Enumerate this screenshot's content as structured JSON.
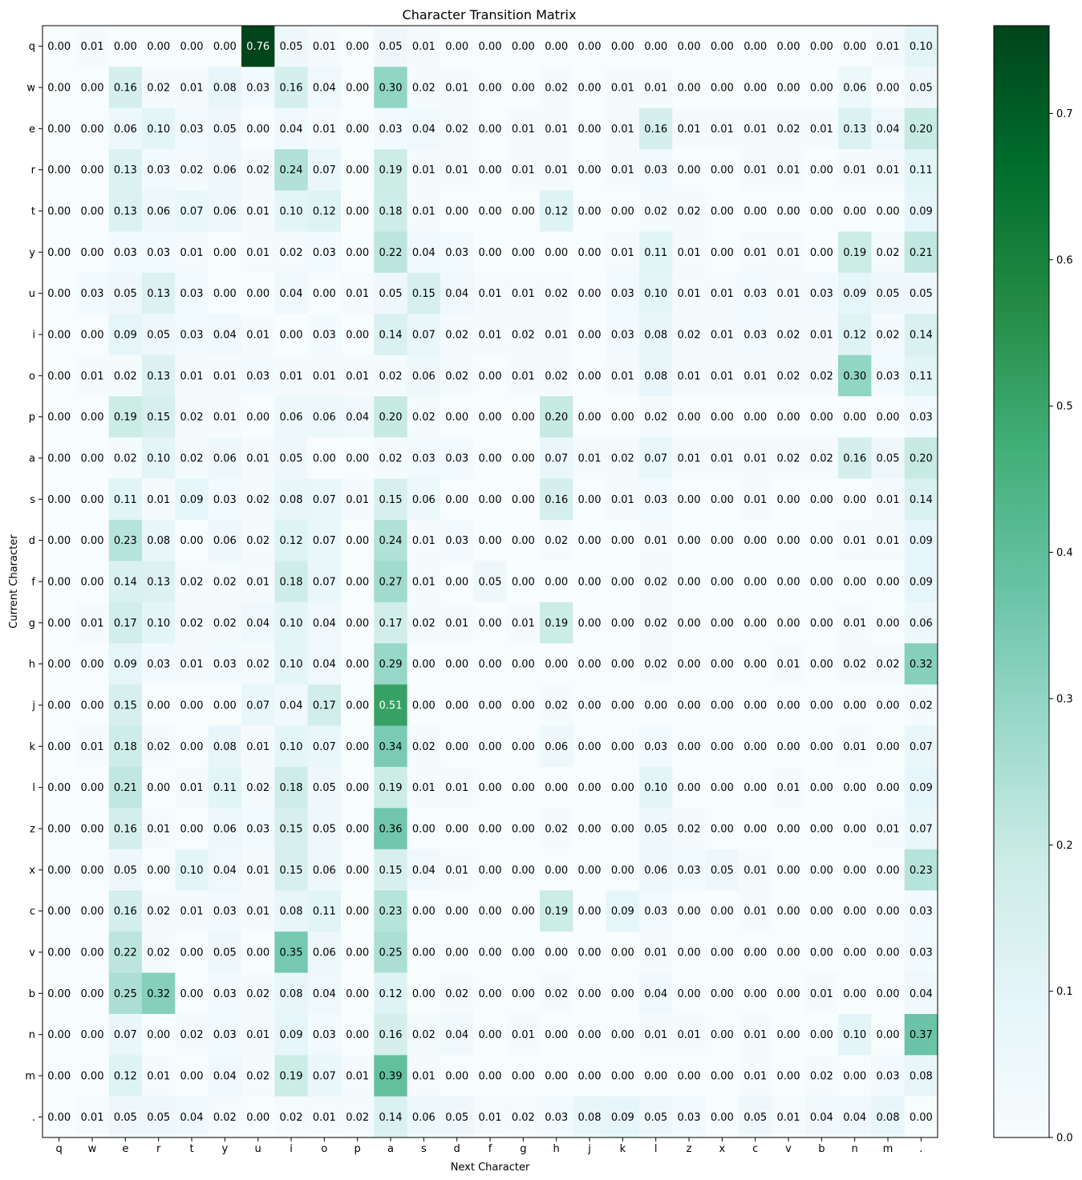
{
  "chart_data": {
    "type": "heatmap",
    "title": "Character Transition Matrix",
    "xlabel": "Next Character",
    "ylabel": "Current Character",
    "x_categories": [
      "q",
      "w",
      "e",
      "r",
      "t",
      "y",
      "u",
      "i",
      "o",
      "p",
      "a",
      "s",
      "d",
      "f",
      "g",
      "h",
      "j",
      "k",
      "l",
      "z",
      "x",
      "c",
      "v",
      "b",
      "n",
      "m",
      "."
    ],
    "y_categories": [
      "q",
      "w",
      "e",
      "r",
      "t",
      "y",
      "u",
      "i",
      "o",
      "p",
      "a",
      "s",
      "d",
      "f",
      "g",
      "h",
      "j",
      "k",
      "l",
      "z",
      "x",
      "c",
      "v",
      "b",
      "n",
      "m",
      "."
    ],
    "values": [
      [
        0.0,
        0.01,
        0.0,
        0.0,
        0.0,
        0.0,
        0.76,
        0.05,
        0.01,
        0.0,
        0.05,
        0.01,
        0.0,
        0.0,
        0.0,
        0.0,
        0.0,
        0.0,
        0.0,
        0.0,
        0.0,
        0.0,
        0.0,
        0.0,
        0.0,
        0.01,
        0.1
      ],
      [
        0.0,
        0.0,
        0.16,
        0.02,
        0.01,
        0.08,
        0.03,
        0.16,
        0.04,
        0.0,
        0.3,
        0.02,
        0.01,
        0.0,
        0.0,
        0.02,
        0.0,
        0.01,
        0.01,
        0.0,
        0.0,
        0.0,
        0.0,
        0.0,
        0.06,
        0.0,
        0.05
      ],
      [
        0.0,
        0.0,
        0.06,
        0.1,
        0.03,
        0.05,
        0.0,
        0.04,
        0.01,
        0.0,
        0.03,
        0.04,
        0.02,
        0.0,
        0.01,
        0.01,
        0.0,
        0.01,
        0.16,
        0.01,
        0.01,
        0.01,
        0.02,
        0.01,
        0.13,
        0.04,
        0.2
      ],
      [
        0.0,
        0.0,
        0.13,
        0.03,
        0.02,
        0.06,
        0.02,
        0.24,
        0.07,
        0.0,
        0.19,
        0.01,
        0.01,
        0.0,
        0.01,
        0.01,
        0.0,
        0.01,
        0.03,
        0.0,
        0.0,
        0.01,
        0.01,
        0.0,
        0.01,
        0.01,
        0.11
      ],
      [
        0.0,
        0.0,
        0.13,
        0.06,
        0.07,
        0.06,
        0.01,
        0.1,
        0.12,
        0.0,
        0.18,
        0.01,
        0.0,
        0.0,
        0.0,
        0.12,
        0.0,
        0.0,
        0.02,
        0.02,
        0.0,
        0.0,
        0.0,
        0.0,
        0.0,
        0.0,
        0.09
      ],
      [
        0.0,
        0.0,
        0.03,
        0.03,
        0.01,
        0.0,
        0.01,
        0.02,
        0.03,
        0.0,
        0.22,
        0.04,
        0.03,
        0.0,
        0.0,
        0.0,
        0.0,
        0.01,
        0.11,
        0.01,
        0.0,
        0.01,
        0.01,
        0.0,
        0.19,
        0.02,
        0.21
      ],
      [
        0.0,
        0.03,
        0.05,
        0.13,
        0.03,
        0.0,
        0.0,
        0.04,
        0.0,
        0.01,
        0.05,
        0.15,
        0.04,
        0.01,
        0.01,
        0.02,
        0.0,
        0.03,
        0.1,
        0.01,
        0.01,
        0.03,
        0.01,
        0.03,
        0.09,
        0.05,
        0.05
      ],
      [
        0.0,
        0.0,
        0.09,
        0.05,
        0.03,
        0.04,
        0.01,
        0.0,
        0.03,
        0.0,
        0.14,
        0.07,
        0.02,
        0.01,
        0.02,
        0.01,
        0.0,
        0.03,
        0.08,
        0.02,
        0.01,
        0.03,
        0.02,
        0.01,
        0.12,
        0.02,
        0.14
      ],
      [
        0.0,
        0.01,
        0.02,
        0.13,
        0.01,
        0.01,
        0.03,
        0.01,
        0.01,
        0.01,
        0.02,
        0.06,
        0.02,
        0.0,
        0.01,
        0.02,
        0.0,
        0.01,
        0.08,
        0.01,
        0.01,
        0.01,
        0.02,
        0.02,
        0.3,
        0.03,
        0.11
      ],
      [
        0.0,
        0.0,
        0.19,
        0.15,
        0.02,
        0.01,
        0.0,
        0.06,
        0.06,
        0.04,
        0.2,
        0.02,
        0.0,
        0.0,
        0.0,
        0.2,
        0.0,
        0.0,
        0.02,
        0.0,
        0.0,
        0.0,
        0.0,
        0.0,
        0.0,
        0.0,
        0.03
      ],
      [
        0.0,
        0.0,
        0.02,
        0.1,
        0.02,
        0.06,
        0.01,
        0.05,
        0.0,
        0.0,
        0.02,
        0.03,
        0.03,
        0.0,
        0.0,
        0.07,
        0.01,
        0.02,
        0.07,
        0.01,
        0.01,
        0.01,
        0.02,
        0.02,
        0.16,
        0.05,
        0.2
      ],
      [
        0.0,
        0.0,
        0.11,
        0.01,
        0.09,
        0.03,
        0.02,
        0.08,
        0.07,
        0.01,
        0.15,
        0.06,
        0.0,
        0.0,
        0.0,
        0.16,
        0.0,
        0.01,
        0.03,
        0.0,
        0.0,
        0.01,
        0.0,
        0.0,
        0.0,
        0.01,
        0.14
      ],
      [
        0.0,
        0.0,
        0.23,
        0.08,
        0.0,
        0.06,
        0.02,
        0.12,
        0.07,
        0.0,
        0.24,
        0.01,
        0.03,
        0.0,
        0.0,
        0.02,
        0.0,
        0.0,
        0.01,
        0.0,
        0.0,
        0.0,
        0.0,
        0.0,
        0.01,
        0.01,
        0.09
      ],
      [
        0.0,
        0.0,
        0.14,
        0.13,
        0.02,
        0.02,
        0.01,
        0.18,
        0.07,
        0.0,
        0.27,
        0.01,
        0.0,
        0.05,
        0.0,
        0.0,
        0.0,
        0.0,
        0.02,
        0.0,
        0.0,
        0.0,
        0.0,
        0.0,
        0.0,
        0.0,
        0.09
      ],
      [
        0.0,
        0.01,
        0.17,
        0.1,
        0.02,
        0.02,
        0.04,
        0.1,
        0.04,
        0.0,
        0.17,
        0.02,
        0.01,
        0.0,
        0.01,
        0.19,
        0.0,
        0.0,
        0.02,
        0.0,
        0.0,
        0.0,
        0.0,
        0.0,
        0.01,
        0.0,
        0.06
      ],
      [
        0.0,
        0.0,
        0.09,
        0.03,
        0.01,
        0.03,
        0.02,
        0.1,
        0.04,
        0.0,
        0.29,
        0.0,
        0.0,
        0.0,
        0.0,
        0.0,
        0.0,
        0.0,
        0.02,
        0.0,
        0.0,
        0.0,
        0.01,
        0.0,
        0.02,
        0.02,
        0.32
      ],
      [
        0.0,
        0.0,
        0.15,
        0.0,
        0.0,
        0.0,
        0.07,
        0.04,
        0.17,
        0.0,
        0.51,
        0.0,
        0.0,
        0.0,
        0.0,
        0.02,
        0.0,
        0.0,
        0.0,
        0.0,
        0.0,
        0.0,
        0.0,
        0.0,
        0.0,
        0.0,
        0.02
      ],
      [
        0.0,
        0.01,
        0.18,
        0.02,
        0.0,
        0.08,
        0.01,
        0.1,
        0.07,
        0.0,
        0.34,
        0.02,
        0.0,
        0.0,
        0.0,
        0.06,
        0.0,
        0.0,
        0.03,
        0.0,
        0.0,
        0.0,
        0.0,
        0.0,
        0.01,
        0.0,
        0.07
      ],
      [
        0.0,
        0.0,
        0.21,
        0.0,
        0.01,
        0.11,
        0.02,
        0.18,
        0.05,
        0.0,
        0.19,
        0.01,
        0.01,
        0.0,
        0.0,
        0.0,
        0.0,
        0.0,
        0.1,
        0.0,
        0.0,
        0.0,
        0.01,
        0.0,
        0.0,
        0.0,
        0.09
      ],
      [
        0.0,
        0.0,
        0.16,
        0.01,
        0.0,
        0.06,
        0.03,
        0.15,
        0.05,
        0.0,
        0.36,
        0.0,
        0.0,
        0.0,
        0.0,
        0.02,
        0.0,
        0.0,
        0.05,
        0.02,
        0.0,
        0.0,
        0.0,
        0.0,
        0.0,
        0.01,
        0.07
      ],
      [
        0.0,
        0.0,
        0.05,
        0.0,
        0.1,
        0.04,
        0.01,
        0.15,
        0.06,
        0.0,
        0.15,
        0.04,
        0.01,
        0.0,
        0.0,
        0.0,
        0.0,
        0.0,
        0.06,
        0.03,
        0.05,
        0.01,
        0.0,
        0.0,
        0.0,
        0.0,
        0.23
      ],
      [
        0.0,
        0.0,
        0.16,
        0.02,
        0.01,
        0.03,
        0.01,
        0.08,
        0.11,
        0.0,
        0.23,
        0.0,
        0.0,
        0.0,
        0.0,
        0.19,
        0.0,
        0.09,
        0.03,
        0.0,
        0.0,
        0.01,
        0.0,
        0.0,
        0.0,
        0.0,
        0.03
      ],
      [
        0.0,
        0.0,
        0.22,
        0.02,
        0.0,
        0.05,
        0.0,
        0.35,
        0.06,
        0.0,
        0.25,
        0.0,
        0.0,
        0.0,
        0.0,
        0.0,
        0.0,
        0.0,
        0.01,
        0.0,
        0.0,
        0.0,
        0.0,
        0.0,
        0.0,
        0.0,
        0.03
      ],
      [
        0.0,
        0.0,
        0.25,
        0.32,
        0.0,
        0.03,
        0.02,
        0.08,
        0.04,
        0.0,
        0.12,
        0.0,
        0.02,
        0.0,
        0.0,
        0.02,
        0.0,
        0.0,
        0.04,
        0.0,
        0.0,
        0.0,
        0.0,
        0.01,
        0.0,
        0.0,
        0.04
      ],
      [
        0.0,
        0.0,
        0.07,
        0.0,
        0.02,
        0.03,
        0.01,
        0.09,
        0.03,
        0.0,
        0.16,
        0.02,
        0.04,
        0.0,
        0.01,
        0.0,
        0.0,
        0.0,
        0.01,
        0.01,
        0.0,
        0.01,
        0.0,
        0.0,
        0.1,
        0.0,
        0.37
      ],
      [
        0.0,
        0.0,
        0.12,
        0.01,
        0.0,
        0.04,
        0.02,
        0.19,
        0.07,
        0.01,
        0.39,
        0.01,
        0.0,
        0.0,
        0.0,
        0.0,
        0.0,
        0.0,
        0.0,
        0.0,
        0.0,
        0.01,
        0.0,
        0.02,
        0.0,
        0.03,
        0.08
      ],
      [
        0.0,
        0.01,
        0.05,
        0.05,
        0.04,
        0.02,
        0.0,
        0.02,
        0.01,
        0.02,
        0.14,
        0.06,
        0.05,
        0.01,
        0.02,
        0.03,
        0.08,
        0.09,
        0.05,
        0.03,
        0.0,
        0.05,
        0.01,
        0.04,
        0.04,
        0.08,
        0.0
      ]
    ],
    "vmin": 0.0,
    "vmax": 0.76,
    "colorbar_ticks": [
      0.0,
      0.1,
      0.2,
      0.3,
      0.4,
      0.5,
      0.6,
      0.7
    ],
    "colormap": "BuGn",
    "colormap_stops": [
      "#f7fcfd",
      "#e5f5f9",
      "#ccece6",
      "#99d8c9",
      "#66c2a4",
      "#41ae76",
      "#238b45",
      "#006d2c",
      "#00441b"
    ]
  }
}
